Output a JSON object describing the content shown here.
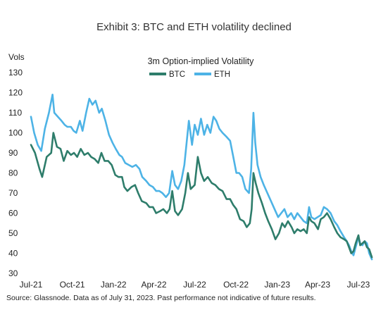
{
  "page": {
    "exhibit_title": "Exhibit 3: BTC and ETH volatility declined",
    "y_unit": "Vols",
    "source": "Source: Glassnode. Data as of July 31, 2023. Past performance not indicative of future results."
  },
  "chart_data": {
    "type": "line",
    "title": "3m Option-implied Volatility",
    "xlabel": "",
    "ylabel": "Vols",
    "ylim": [
      30,
      130
    ],
    "yticks": [
      30,
      40,
      50,
      60,
      70,
      80,
      90,
      100,
      110,
      120,
      130
    ],
    "x_domain": [
      "2021-07-01",
      "2023-08-25"
    ],
    "xticks": [
      {
        "date": "2021-07-01",
        "label": "Jul-21"
      },
      {
        "date": "2021-10-01",
        "label": "Oct-21"
      },
      {
        "date": "2022-01-01",
        "label": "Jan-22"
      },
      {
        "date": "2022-04-01",
        "label": "Apr-22"
      },
      {
        "date": "2022-07-01",
        "label": "Jul-22"
      },
      {
        "date": "2022-10-01",
        "label": "Oct-22"
      },
      {
        "date": "2023-01-01",
        "label": "Jan-23"
      },
      {
        "date": "2023-04-01",
        "label": "Apr-23"
      },
      {
        "date": "2023-07-01",
        "label": "Jul-23"
      }
    ],
    "legend_position": "top-center",
    "grid": false,
    "series": [
      {
        "name": "BTC",
        "color": "#2e7d6b",
        "points": [
          [
            "2021-07-01",
            94
          ],
          [
            "2021-07-10",
            90
          ],
          [
            "2021-07-20",
            82
          ],
          [
            "2021-07-26",
            78
          ],
          [
            "2021-08-05",
            88
          ],
          [
            "2021-08-15",
            90
          ],
          [
            "2021-08-20",
            100
          ],
          [
            "2021-08-28",
            93
          ],
          [
            "2021-09-05",
            92
          ],
          [
            "2021-09-12",
            86
          ],
          [
            "2021-09-20",
            91
          ],
          [
            "2021-09-28",
            89
          ],
          [
            "2021-10-05",
            90
          ],
          [
            "2021-10-12",
            88
          ],
          [
            "2021-10-20",
            92
          ],
          [
            "2021-10-28",
            89
          ],
          [
            "2021-11-05",
            90
          ],
          [
            "2021-11-12",
            88
          ],
          [
            "2021-11-20",
            87
          ],
          [
            "2021-11-28",
            85
          ],
          [
            "2021-12-05",
            90
          ],
          [
            "2021-12-12",
            86
          ],
          [
            "2021-12-20",
            86
          ],
          [
            "2021-12-28",
            84
          ],
          [
            "2022-01-05",
            79
          ],
          [
            "2022-01-12",
            78
          ],
          [
            "2022-01-20",
            78
          ],
          [
            "2022-01-25",
            73
          ],
          [
            "2022-02-01",
            71
          ],
          [
            "2022-02-10",
            73
          ],
          [
            "2022-02-18",
            74
          ],
          [
            "2022-02-25",
            70
          ],
          [
            "2022-03-05",
            66
          ],
          [
            "2022-03-15",
            65
          ],
          [
            "2022-03-22",
            63
          ],
          [
            "2022-03-30",
            63
          ],
          [
            "2022-04-06",
            60
          ],
          [
            "2022-04-15",
            61
          ],
          [
            "2022-04-22",
            62
          ],
          [
            "2022-04-30",
            60
          ],
          [
            "2022-05-06",
            62
          ],
          [
            "2022-05-12",
            71
          ],
          [
            "2022-05-18",
            61
          ],
          [
            "2022-05-25",
            59
          ],
          [
            "2022-06-03",
            62
          ],
          [
            "2022-06-10",
            70
          ],
          [
            "2022-06-16",
            80
          ],
          [
            "2022-06-22",
            72
          ],
          [
            "2022-07-01",
            74
          ],
          [
            "2022-07-08",
            88
          ],
          [
            "2022-07-15",
            80
          ],
          [
            "2022-07-22",
            76
          ],
          [
            "2022-07-30",
            78
          ],
          [
            "2022-08-08",
            75
          ],
          [
            "2022-08-16",
            74
          ],
          [
            "2022-08-24",
            72
          ],
          [
            "2022-09-01",
            71
          ],
          [
            "2022-09-10",
            67
          ],
          [
            "2022-09-18",
            67
          ],
          [
            "2022-09-25",
            64
          ],
          [
            "2022-10-02",
            62
          ],
          [
            "2022-10-10",
            57
          ],
          [
            "2022-10-18",
            56
          ],
          [
            "2022-10-25",
            53
          ],
          [
            "2022-11-01",
            55
          ],
          [
            "2022-11-05",
            62
          ],
          [
            "2022-11-09",
            80
          ],
          [
            "2022-11-14",
            75
          ],
          [
            "2022-11-20",
            70
          ],
          [
            "2022-11-28",
            65
          ],
          [
            "2022-12-05",
            60
          ],
          [
            "2022-12-12",
            56
          ],
          [
            "2022-12-20",
            52
          ],
          [
            "2022-12-28",
            47
          ],
          [
            "2023-01-05",
            50
          ],
          [
            "2023-01-12",
            55
          ],
          [
            "2023-01-18",
            53
          ],
          [
            "2023-01-25",
            56
          ],
          [
            "2023-02-02",
            53
          ],
          [
            "2023-02-08",
            50
          ],
          [
            "2023-02-15",
            52
          ],
          [
            "2023-02-22",
            51
          ],
          [
            "2023-03-01",
            52
          ],
          [
            "2023-03-08",
            50
          ],
          [
            "2023-03-13",
            58
          ],
          [
            "2023-03-18",
            56
          ],
          [
            "2023-03-25",
            55
          ],
          [
            "2023-04-02",
            52
          ],
          [
            "2023-04-08",
            57
          ],
          [
            "2023-04-15",
            58
          ],
          [
            "2023-04-22",
            60
          ],
          [
            "2023-04-30",
            57
          ],
          [
            "2023-05-08",
            53
          ],
          [
            "2023-05-15",
            50
          ],
          [
            "2023-05-22",
            48
          ],
          [
            "2023-05-30",
            47
          ],
          [
            "2023-06-05",
            46
          ],
          [
            "2023-06-10",
            43
          ],
          [
            "2023-06-15",
            40
          ],
          [
            "2023-06-20",
            41
          ],
          [
            "2023-06-25",
            45
          ],
          [
            "2023-07-01",
            49
          ],
          [
            "2023-07-05",
            44
          ],
          [
            "2023-07-10",
            45
          ],
          [
            "2023-07-15",
            46
          ],
          [
            "2023-07-20",
            43
          ],
          [
            "2023-07-25",
            42
          ],
          [
            "2023-07-31",
            38
          ]
        ]
      },
      {
        "name": "ETH",
        "color": "#4db3e6",
        "points": [
          [
            "2021-07-01",
            108
          ],
          [
            "2021-07-08",
            100
          ],
          [
            "2021-07-16",
            94
          ],
          [
            "2021-07-24",
            91
          ],
          [
            "2021-08-01",
            102
          ],
          [
            "2021-08-10",
            110
          ],
          [
            "2021-08-18",
            119
          ],
          [
            "2021-08-22",
            110
          ],
          [
            "2021-08-30",
            108
          ],
          [
            "2021-09-07",
            106
          ],
          [
            "2021-09-14",
            104
          ],
          [
            "2021-09-20",
            103
          ],
          [
            "2021-09-28",
            103
          ],
          [
            "2021-10-04",
            101
          ],
          [
            "2021-10-10",
            100
          ],
          [
            "2021-10-18",
            106
          ],
          [
            "2021-10-24",
            101
          ],
          [
            "2021-11-01",
            110
          ],
          [
            "2021-11-08",
            117
          ],
          [
            "2021-11-15",
            114
          ],
          [
            "2021-11-22",
            116
          ],
          [
            "2021-11-30",
            110
          ],
          [
            "2021-12-06",
            112
          ],
          [
            "2021-12-14",
            106
          ],
          [
            "2021-12-22",
            99
          ],
          [
            "2021-12-30",
            95
          ],
          [
            "2022-01-06",
            92
          ],
          [
            "2022-01-14",
            89
          ],
          [
            "2022-01-20",
            88
          ],
          [
            "2022-01-27",
            85
          ],
          [
            "2022-02-04",
            84
          ],
          [
            "2022-02-12",
            83
          ],
          [
            "2022-02-20",
            84
          ],
          [
            "2022-02-28",
            82
          ],
          [
            "2022-03-06",
            78
          ],
          [
            "2022-03-15",
            76
          ],
          [
            "2022-03-22",
            74
          ],
          [
            "2022-03-30",
            73
          ],
          [
            "2022-04-06",
            71
          ],
          [
            "2022-04-13",
            71
          ],
          [
            "2022-04-20",
            70
          ],
          [
            "2022-04-28",
            68
          ],
          [
            "2022-05-05",
            70
          ],
          [
            "2022-05-12",
            81
          ],
          [
            "2022-05-18",
            74
          ],
          [
            "2022-05-25",
            72
          ],
          [
            "2022-06-01",
            76
          ],
          [
            "2022-06-08",
            84
          ],
          [
            "2022-06-13",
            95
          ],
          [
            "2022-06-18",
            106
          ],
          [
            "2022-06-25",
            94
          ],
          [
            "2022-07-01",
            104
          ],
          [
            "2022-07-08",
            99
          ],
          [
            "2022-07-15",
            107
          ],
          [
            "2022-07-22",
            99
          ],
          [
            "2022-07-29",
            104
          ],
          [
            "2022-08-05",
            100
          ],
          [
            "2022-08-12",
            108
          ],
          [
            "2022-08-18",
            106
          ],
          [
            "2022-08-25",
            102
          ],
          [
            "2022-09-01",
            100
          ],
          [
            "2022-09-10",
            98
          ],
          [
            "2022-09-18",
            96
          ],
          [
            "2022-09-25",
            88
          ],
          [
            "2022-10-02",
            80
          ],
          [
            "2022-10-08",
            80
          ],
          [
            "2022-10-15",
            78
          ],
          [
            "2022-10-22",
            72
          ],
          [
            "2022-10-30",
            70
          ],
          [
            "2022-11-04",
            82
          ],
          [
            "2022-11-09",
            110
          ],
          [
            "2022-11-13",
            95
          ],
          [
            "2022-11-18",
            84
          ],
          [
            "2022-11-25",
            78
          ],
          [
            "2022-12-02",
            74
          ],
          [
            "2022-12-10",
            70
          ],
          [
            "2022-12-18",
            66
          ],
          [
            "2022-12-26",
            62
          ],
          [
            "2023-01-03",
            58
          ],
          [
            "2023-01-10",
            60
          ],
          [
            "2023-01-17",
            62
          ],
          [
            "2023-01-24",
            58
          ],
          [
            "2023-02-01",
            60
          ],
          [
            "2023-02-08",
            57
          ],
          [
            "2023-02-15",
            60
          ],
          [
            "2023-02-22",
            58
          ],
          [
            "2023-03-01",
            56
          ],
          [
            "2023-03-08",
            55
          ],
          [
            "2023-03-13",
            63
          ],
          [
            "2023-03-18",
            58
          ],
          [
            "2023-03-25",
            57
          ],
          [
            "2023-04-01",
            58
          ],
          [
            "2023-04-08",
            59
          ],
          [
            "2023-04-15",
            63
          ],
          [
            "2023-04-22",
            62
          ],
          [
            "2023-04-30",
            60
          ],
          [
            "2023-05-08",
            56
          ],
          [
            "2023-05-15",
            54
          ],
          [
            "2023-05-22",
            51
          ],
          [
            "2023-05-30",
            48
          ],
          [
            "2023-06-05",
            46
          ],
          [
            "2023-06-10",
            44
          ],
          [
            "2023-06-15",
            41
          ],
          [
            "2023-06-20",
            39
          ],
          [
            "2023-06-25",
            43
          ],
          [
            "2023-07-01",
            48
          ],
          [
            "2023-07-05",
            45
          ],
          [
            "2023-07-10",
            44
          ],
          [
            "2023-07-15",
            46
          ],
          [
            "2023-07-20",
            45
          ],
          [
            "2023-07-25",
            40
          ],
          [
            "2023-07-31",
            37
          ]
        ]
      }
    ]
  }
}
